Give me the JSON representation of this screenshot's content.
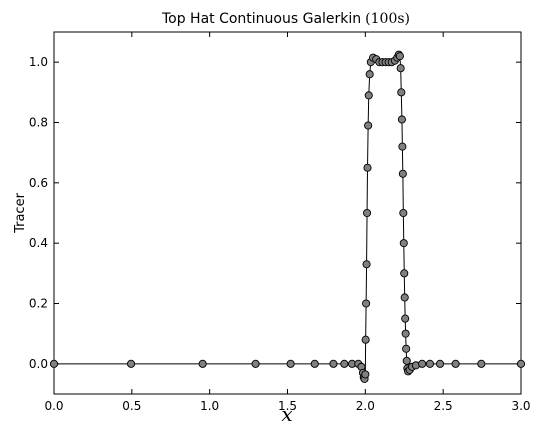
{
  "chart_data": {
    "type": "line",
    "title": "Top Hat Continuous Galerkin",
    "title_math": "(100s)",
    "xlabel": "x",
    "ylabel": "Tracer",
    "xlim": [
      0.0,
      3.0
    ],
    "ylim": [
      -0.1,
      1.1
    ],
    "xticks": [
      0.0,
      0.5,
      1.0,
      1.5,
      2.0,
      2.5,
      3.0
    ],
    "xtick_labels": [
      "0.0",
      "0.5",
      "1.0",
      "1.5",
      "2.0",
      "2.5",
      "3.0"
    ],
    "yticks": [
      0.0,
      0.2,
      0.4,
      0.6,
      0.8,
      1.0
    ],
    "ytick_labels": [
      "0.0",
      "0.2",
      "0.4",
      "0.6",
      "0.8",
      "1.0"
    ],
    "grid": false,
    "legend": "none",
    "line_color": "#000000",
    "marker_fill": "#808080",
    "marker_edge": "#000000",
    "series": [
      {
        "x": [
          0.0,
          0.495,
          0.955,
          1.295,
          1.52,
          1.675,
          1.795,
          1.865,
          1.915,
          1.955,
          1.975,
          1.985,
          1.99,
          1.995,
          2.0,
          2.002,
          2.005,
          2.008,
          2.011,
          2.014,
          2.018,
          2.022,
          2.028,
          2.035,
          2.05,
          2.07,
          2.09,
          2.11,
          2.13,
          2.15,
          2.17,
          2.19,
          2.205,
          2.215,
          2.222,
          2.227,
          2.231,
          2.235,
          2.238,
          2.241,
          2.244,
          2.247,
          2.25,
          2.253,
          2.256,
          2.259,
          2.262,
          2.266,
          2.27,
          2.275,
          2.285,
          2.3,
          2.325,
          2.365,
          2.415,
          2.48,
          2.58,
          2.745,
          3.0
        ],
        "y": [
          0.0,
          0.0,
          0.0,
          0.0,
          0.0,
          0.0,
          0.0,
          0.0,
          0.0,
          0.0,
          -0.01,
          -0.03,
          -0.045,
          -0.05,
          -0.035,
          0.08,
          0.2,
          0.33,
          0.5,
          0.65,
          0.79,
          0.89,
          0.96,
          1.0,
          1.015,
          1.01,
          1.0,
          1.0,
          1.0,
          1.0,
          1.0,
          1.005,
          1.015,
          1.025,
          1.02,
          0.98,
          0.9,
          0.81,
          0.72,
          0.63,
          0.5,
          0.4,
          0.3,
          0.22,
          0.15,
          0.1,
          0.05,
          0.01,
          -0.015,
          -0.025,
          -0.02,
          -0.01,
          -0.005,
          0.0,
          0.0,
          0.0,
          0.0,
          0.0,
          0.0
        ]
      }
    ]
  }
}
